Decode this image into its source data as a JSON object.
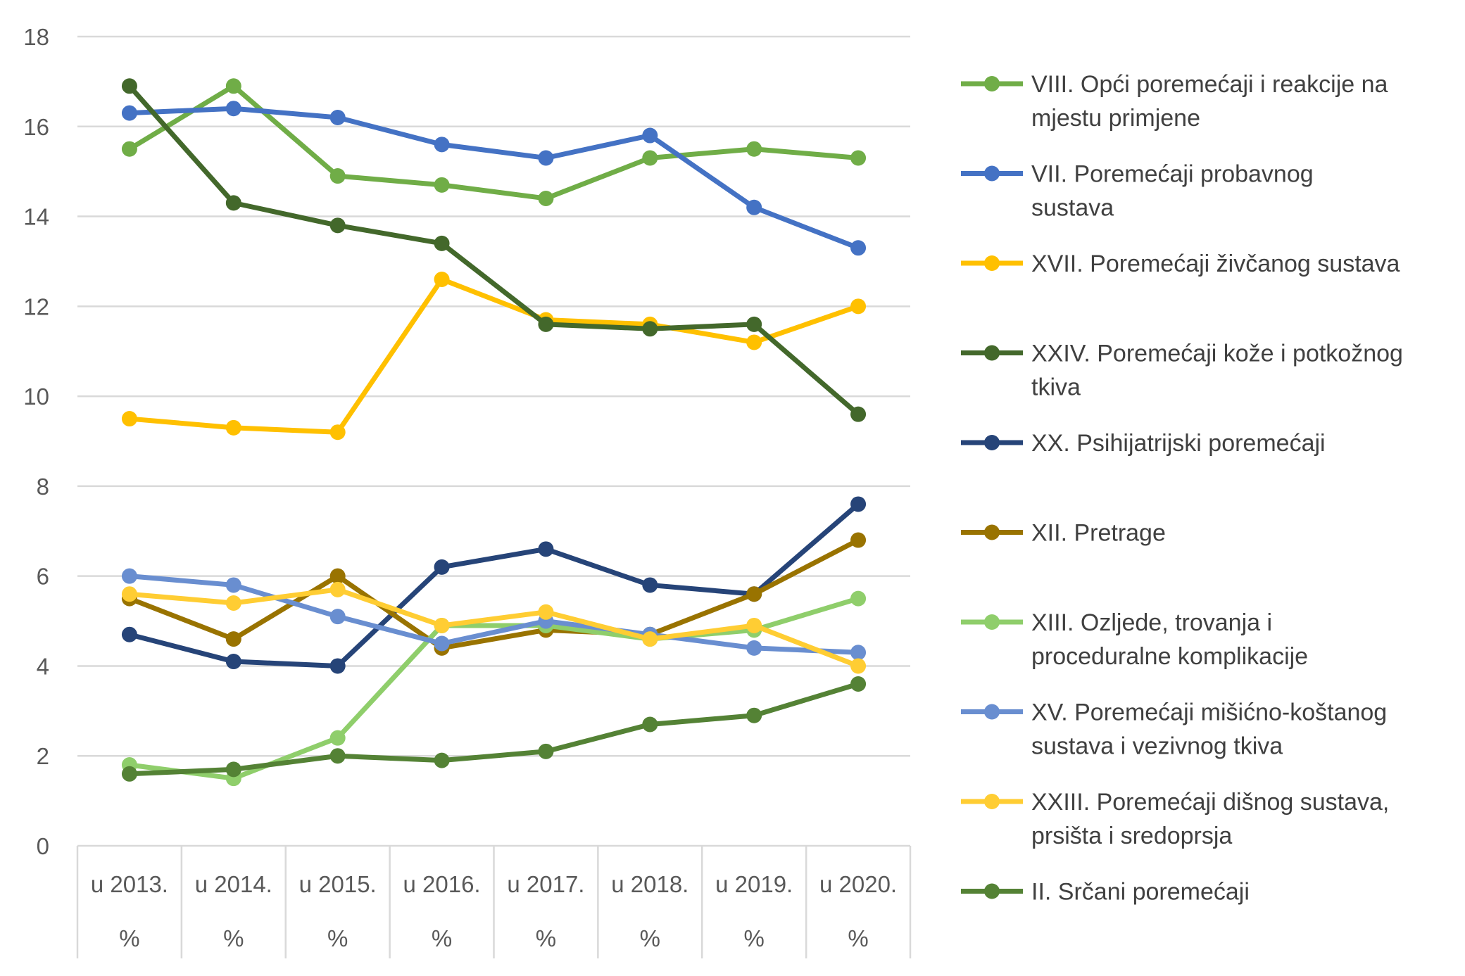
{
  "chart_data": {
    "type": "line",
    "title": "",
    "xlabel": "",
    "ylabel": "",
    "ylim": [
      0,
      18
    ],
    "yticks": [
      "0",
      "2",
      "4",
      "6",
      "8",
      "10",
      "12",
      "14",
      "16",
      "18"
    ],
    "grid": true,
    "legend_position": "right",
    "categories": [
      {
        "year": "u 2013.",
        "unit": "%"
      },
      {
        "year": "u 2014.",
        "unit": "%"
      },
      {
        "year": "u 2015.",
        "unit": "%"
      },
      {
        "year": "u 2016.",
        "unit": "%"
      },
      {
        "year": "u 2017.",
        "unit": "%"
      },
      {
        "year": "u 2018.",
        "unit": "%"
      },
      {
        "year": "u 2019.",
        "unit": "%"
      },
      {
        "year": "u 2020.",
        "unit": "%"
      }
    ],
    "series": [
      {
        "name": "VIII. Opći poremećaji i reakcije na mjestu primjene",
        "legend_lines": [
          "VIII. Opći poremećaji i reakcije na",
          "mjestu primjene"
        ],
        "color": "#70ad47",
        "values": [
          15.5,
          16.9,
          14.9,
          14.7,
          14.4,
          15.3,
          15.5,
          15.3
        ]
      },
      {
        "name": "VII. Poremećaji probavnog sustava",
        "legend_lines": [
          "VII. Poremećaji probavnog",
          "sustava"
        ],
        "color": "#4472c4",
        "values": [
          16.3,
          16.4,
          16.2,
          15.6,
          15.3,
          15.8,
          14.2,
          13.3
        ]
      },
      {
        "name": "XVII. Poremećaji živčanog sustava",
        "legend_lines": [
          "XVII. Poremećaji živčanog sustava"
        ],
        "color": "#ffc000",
        "values": [
          9.5,
          9.3,
          9.2,
          12.6,
          11.7,
          11.6,
          11.2,
          12.0
        ]
      },
      {
        "name": "XXIV. Poremećaji kože i potkožnog tkiva",
        "legend_lines": [
          "XXIV. Poremećaji kože i potkožnog",
          "tkiva"
        ],
        "color": "#43682b",
        "values": [
          16.9,
          14.3,
          13.8,
          13.4,
          11.6,
          11.5,
          11.6,
          9.6
        ]
      },
      {
        "name": "XX. Psihijatrijski poremećaji",
        "legend_lines": [
          "XX. Psihijatrijski poremećaji"
        ],
        "color": "#264478",
        "values": [
          4.7,
          4.1,
          4.0,
          6.2,
          6.6,
          5.8,
          5.6,
          7.6
        ]
      },
      {
        "name": "XII. Pretrage",
        "legend_lines": [
          "XII. Pretrage"
        ],
        "color": "#997300",
        "values": [
          5.5,
          4.6,
          6.0,
          4.4,
          4.8,
          4.7,
          5.6,
          6.8
        ]
      },
      {
        "name": "XIII. Ozljede, trovanja i proceduralne komplikacije",
        "legend_lines": [
          "XIII. Ozljede, trovanja i",
          "proceduralne komplikacije"
        ],
        "color": "#8fce6b",
        "values": [
          1.8,
          1.5,
          2.4,
          4.9,
          4.9,
          4.6,
          4.8,
          5.5
        ]
      },
      {
        "name": "XV. Poremećaji mišićno-koštanog sustava i vezivnog tkiva",
        "legend_lines": [
          "XV. Poremećaji mišićno-koštanog",
          "sustava i vezivnog tkiva"
        ],
        "color": "#698ed0",
        "values": [
          6.0,
          5.8,
          5.1,
          4.5,
          5.0,
          4.7,
          4.4,
          4.3
        ]
      },
      {
        "name": "XXIII. Poremećaji dišnog sustava, prsišta i sredoprsja",
        "legend_lines": [
          "XXIII. Poremećaji dišnog sustava,",
          "prsišta i sredoprsja"
        ],
        "color": "#ffcd33",
        "values": [
          5.6,
          5.4,
          5.7,
          4.9,
          5.2,
          4.6,
          4.9,
          4.0
        ]
      },
      {
        "name": "II. Srčani poremećaji",
        "legend_lines": [
          "II. Srčani poremećaji"
        ],
        "color": "#548235",
        "values": [
          1.6,
          1.7,
          2.0,
          1.9,
          2.1,
          2.7,
          2.9,
          3.6
        ]
      }
    ]
  }
}
